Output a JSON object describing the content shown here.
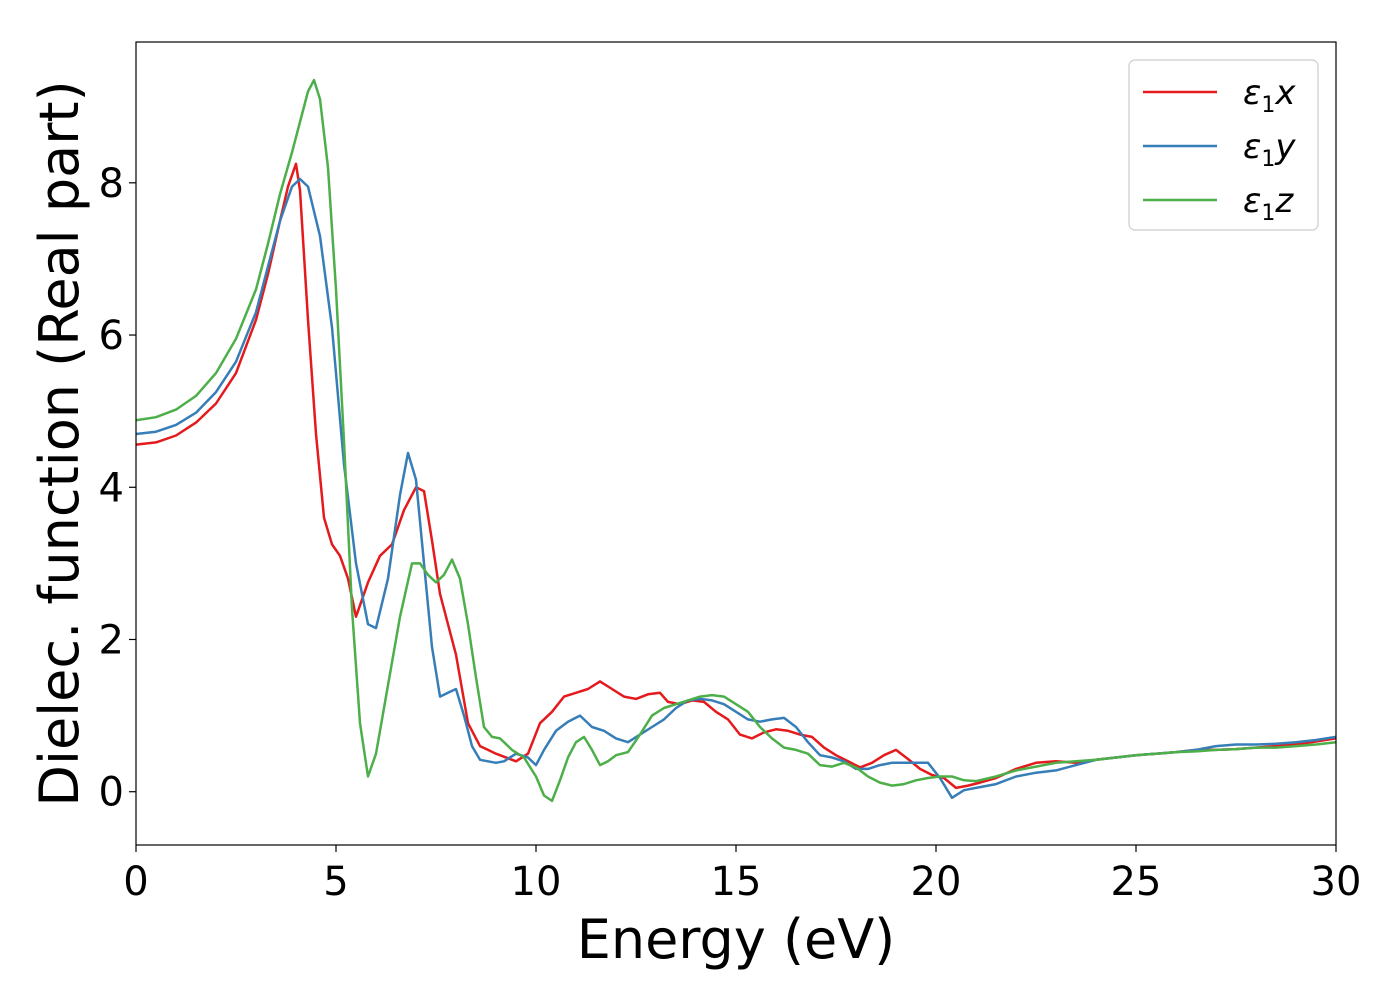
{
  "chart_data": {
    "type": "line",
    "title": "",
    "xlabel": "Energy (eV)",
    "ylabel": "Dielec. function (Real part)",
    "xlim": [
      0,
      30
    ],
    "ylim": [
      -0.7,
      9.85
    ],
    "xticks": [
      0,
      5,
      10,
      15,
      20,
      25,
      30
    ],
    "yticks": [
      0,
      2,
      4,
      6,
      8
    ],
    "grid": false,
    "legend_position": "top-right",
    "series": [
      {
        "name": "ε1x",
        "legend_symbol": "ε",
        "legend_sub": "1",
        "legend_var": "x",
        "color": "#e41a1c",
        "x": [
          0,
          0.5,
          1,
          1.5,
          2,
          2.5,
          3,
          3.3,
          3.6,
          3.8,
          4.0,
          4.1,
          4.3,
          4.5,
          4.7,
          4.9,
          5.1,
          5.3,
          5.5,
          5.8,
          6.1,
          6.4,
          6.7,
          7.0,
          7.2,
          7.4,
          7.6,
          7.8,
          8.0,
          8.3,
          8.6,
          8.8,
          9.0,
          9.5,
          9.8,
          10.1,
          10.4,
          10.7,
          11.0,
          11.3,
          11.6,
          11.9,
          12.2,
          12.5,
          12.8,
          13.1,
          13.3,
          13.6,
          13.9,
          14.2,
          14.5,
          14.8,
          15.1,
          15.4,
          15.7,
          16.0,
          16.3,
          16.6,
          16.9,
          17.2,
          17.5,
          17.8,
          18.1,
          18.4,
          18.7,
          19.0,
          19.3,
          19.6,
          19.9,
          20.2,
          20.5,
          20.8,
          21.1,
          21.5,
          22,
          22.5,
          23,
          23.5,
          24,
          24.5,
          25,
          25.5,
          26,
          26.5,
          27,
          27.5,
          28,
          28.5,
          29,
          29.5,
          30
        ],
        "y": [
          4.56,
          4.59,
          4.68,
          4.85,
          5.1,
          5.5,
          6.2,
          6.8,
          7.5,
          7.95,
          8.25,
          7.9,
          6.2,
          4.7,
          3.6,
          3.25,
          3.1,
          2.8,
          2.3,
          2.75,
          3.1,
          3.25,
          3.7,
          4.0,
          3.95,
          3.3,
          2.6,
          2.2,
          1.8,
          0.9,
          0.6,
          0.55,
          0.5,
          0.4,
          0.5,
          0.9,
          1.05,
          1.25,
          1.3,
          1.35,
          1.45,
          1.35,
          1.25,
          1.22,
          1.28,
          1.3,
          1.18,
          1.15,
          1.2,
          1.18,
          1.05,
          0.95,
          0.75,
          0.7,
          0.78,
          0.82,
          0.8,
          0.75,
          0.72,
          0.58,
          0.48,
          0.4,
          0.32,
          0.38,
          0.48,
          0.55,
          0.43,
          0.3,
          0.22,
          0.18,
          0.05,
          0.08,
          0.12,
          0.18,
          0.3,
          0.38,
          0.4,
          0.38,
          0.42,
          0.45,
          0.48,
          0.5,
          0.52,
          0.55,
          0.55,
          0.56,
          0.58,
          0.6,
          0.62,
          0.66,
          0.7
        ]
      },
      {
        "name": "ε1y",
        "legend_symbol": "ε",
        "legend_sub": "1",
        "legend_var": "y",
        "color": "#377eb8",
        "x": [
          0,
          0.5,
          1,
          1.5,
          2,
          2.5,
          3,
          3.3,
          3.6,
          3.9,
          4.1,
          4.3,
          4.6,
          4.9,
          5.2,
          5.5,
          5.8,
          6.0,
          6.3,
          6.6,
          6.8,
          7.0,
          7.2,
          7.4,
          7.6,
          7.8,
          8.0,
          8.2,
          8.4,
          8.6,
          8.8,
          9.0,
          9.2,
          9.5,
          9.8,
          10.0,
          10.2,
          10.5,
          10.8,
          11.1,
          11.4,
          11.7,
          12.0,
          12.3,
          12.6,
          12.9,
          13.2,
          13.5,
          13.8,
          14.1,
          14.4,
          14.7,
          15.0,
          15.3,
          15.6,
          15.9,
          16.2,
          16.5,
          16.8,
          17.1,
          17.4,
          17.7,
          18.0,
          18.3,
          18.6,
          18.9,
          19.2,
          19.5,
          19.8,
          20.1,
          20.4,
          20.7,
          21.0,
          21.5,
          22,
          22.5,
          23,
          23.5,
          24,
          24.5,
          25,
          25.5,
          26,
          26.5,
          27,
          27.5,
          28,
          28.5,
          29,
          29.5,
          30
        ],
        "y": [
          4.7,
          4.73,
          4.82,
          4.98,
          5.25,
          5.65,
          6.3,
          6.9,
          7.5,
          7.95,
          8.05,
          7.95,
          7.3,
          6.1,
          4.3,
          3.0,
          2.2,
          2.15,
          2.8,
          3.9,
          4.45,
          4.1,
          3.0,
          1.9,
          1.25,
          1.3,
          1.35,
          1.0,
          0.6,
          0.42,
          0.4,
          0.38,
          0.4,
          0.5,
          0.45,
          0.35,
          0.55,
          0.8,
          0.92,
          1.0,
          0.85,
          0.8,
          0.7,
          0.65,
          0.75,
          0.85,
          0.95,
          1.1,
          1.2,
          1.22,
          1.2,
          1.15,
          1.05,
          0.95,
          0.92,
          0.95,
          0.97,
          0.85,
          0.65,
          0.48,
          0.45,
          0.4,
          0.3,
          0.3,
          0.35,
          0.38,
          0.38,
          0.38,
          0.38,
          0.18,
          -0.08,
          0.02,
          0.05,
          0.1,
          0.2,
          0.25,
          0.28,
          0.35,
          0.42,
          0.45,
          0.48,
          0.5,
          0.52,
          0.55,
          0.6,
          0.62,
          0.62,
          0.63,
          0.65,
          0.68,
          0.72
        ]
      },
      {
        "name": "ε1z",
        "legend_symbol": "ε",
        "legend_sub": "1",
        "legend_var": "z",
        "color": "#4daf4a",
        "x": [
          0,
          0.5,
          1,
          1.5,
          2,
          2.5,
          3,
          3.3,
          3.6,
          3.9,
          4.1,
          4.3,
          4.45,
          4.6,
          4.8,
          5.0,
          5.2,
          5.4,
          5.6,
          5.8,
          6.0,
          6.3,
          6.6,
          6.9,
          7.1,
          7.3,
          7.5,
          7.7,
          7.9,
          8.1,
          8.3,
          8.5,
          8.7,
          8.9,
          9.1,
          9.4,
          9.7,
          10.0,
          10.2,
          10.4,
          10.6,
          10.8,
          11.0,
          11.2,
          11.4,
          11.6,
          11.8,
          12.0,
          12.3,
          12.6,
          12.9,
          13.2,
          13.5,
          13.8,
          14.1,
          14.4,
          14.7,
          15.0,
          15.3,
          15.6,
          15.9,
          16.2,
          16.5,
          16.8,
          17.1,
          17.4,
          17.7,
          18.0,
          18.3,
          18.6,
          18.9,
          19.2,
          19.5,
          19.8,
          20.1,
          20.4,
          20.7,
          21.0,
          21.5,
          22,
          22.5,
          23,
          23.5,
          24,
          24.5,
          25,
          25.5,
          26,
          26.5,
          27,
          27.5,
          28,
          28.5,
          29,
          29.5,
          30
        ],
        "y": [
          4.88,
          4.92,
          5.02,
          5.2,
          5.5,
          5.95,
          6.6,
          7.2,
          7.85,
          8.4,
          8.8,
          9.2,
          9.35,
          9.1,
          8.2,
          6.6,
          4.6,
          2.4,
          0.9,
          0.2,
          0.5,
          1.4,
          2.3,
          3.0,
          3.0,
          2.85,
          2.75,
          2.85,
          3.05,
          2.8,
          2.2,
          1.5,
          0.85,
          0.72,
          0.7,
          0.55,
          0.45,
          0.2,
          -0.05,
          -0.12,
          0.15,
          0.45,
          0.65,
          0.72,
          0.55,
          0.35,
          0.4,
          0.48,
          0.52,
          0.75,
          1.0,
          1.1,
          1.15,
          1.2,
          1.25,
          1.27,
          1.25,
          1.15,
          1.05,
          0.85,
          0.7,
          0.58,
          0.55,
          0.5,
          0.35,
          0.33,
          0.38,
          0.32,
          0.2,
          0.12,
          0.08,
          0.1,
          0.15,
          0.18,
          0.2,
          0.2,
          0.15,
          0.14,
          0.2,
          0.28,
          0.33,
          0.38,
          0.4,
          0.42,
          0.45,
          0.48,
          0.5,
          0.52,
          0.53,
          0.55,
          0.56,
          0.58,
          0.58,
          0.6,
          0.62,
          0.65
        ]
      }
    ]
  }
}
